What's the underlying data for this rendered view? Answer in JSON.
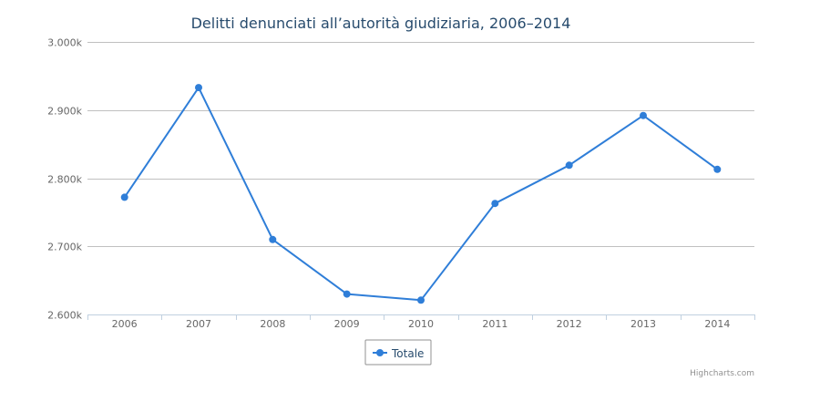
{
  "chart_data": {
    "type": "line",
    "title": "Delitti denunciati all’autorità giudiziaria, 2006–2014",
    "categories": [
      "2006",
      "2007",
      "2008",
      "2009",
      "2010",
      "2011",
      "2012",
      "2013",
      "2014"
    ],
    "series": [
      {
        "name": "Totale",
        "color": "#2f7ed8",
        "values": [
          2772,
          2933,
          2710,
          2630,
          2621,
          2763,
          2819,
          2892,
          2813
        ]
      }
    ],
    "ylim": [
      2600,
      3000
    ],
    "yticks": [
      {
        "value": 3000,
        "label": "3.000k"
      },
      {
        "value": 2900,
        "label": "2.900k"
      },
      {
        "value": 2800,
        "label": "2.800k"
      },
      {
        "value": 2700,
        "label": "2.700k"
      },
      {
        "value": 2600,
        "label": "2.600k"
      }
    ],
    "xlabel": "",
    "ylabel": "",
    "grid": true,
    "legend_position": "bottom-center",
    "credits": "Highcharts.com"
  }
}
